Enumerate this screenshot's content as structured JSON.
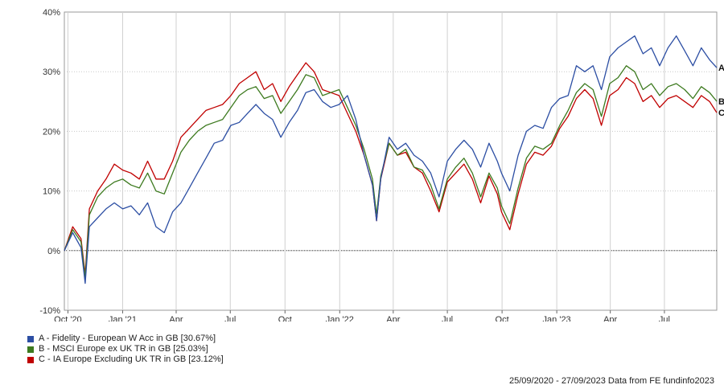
{
  "chart_data": {
    "type": "line",
    "ylim": [
      -10,
      40
    ],
    "yticks": [
      -10,
      0,
      10,
      20,
      30,
      40
    ],
    "ytick_labels": [
      "-10%",
      "0%",
      "10%",
      "20%",
      "30%",
      "40%"
    ],
    "xlim": [
      "2020-09-25",
      "2023-09-27"
    ],
    "xticks": [
      {
        "date": "2020-10-01",
        "label": "Oct '20"
      },
      {
        "date": "2021-01-01",
        "label": "Jan '21"
      },
      {
        "date": "2021-04-01",
        "label": "Apr"
      },
      {
        "date": "2021-07-01",
        "label": "Jul"
      },
      {
        "date": "2021-10-01",
        "label": "Oct"
      },
      {
        "date": "2022-01-01",
        "label": "Jan '22"
      },
      {
        "date": "2022-04-01",
        "label": "Apr"
      },
      {
        "date": "2022-07-01",
        "label": "Jul"
      },
      {
        "date": "2022-10-01",
        "label": "Oct"
      },
      {
        "date": "2023-01-01",
        "label": "Jan '23"
      },
      {
        "date": "2023-04-01",
        "label": "Apr"
      },
      {
        "date": "2023-07-01",
        "label": "Jul"
      }
    ],
    "grid": true,
    "legend_position": "bottom-left",
    "x": [
      "2020-09-25",
      "2020-10-09",
      "2020-10-23",
      "2020-10-30",
      "2020-11-06",
      "2020-11-20",
      "2020-12-04",
      "2020-12-18",
      "2021-01-01",
      "2021-01-15",
      "2021-01-29",
      "2021-02-12",
      "2021-02-26",
      "2021-03-12",
      "2021-03-26",
      "2021-04-09",
      "2021-04-23",
      "2021-05-07",
      "2021-05-21",
      "2021-06-04",
      "2021-06-18",
      "2021-07-02",
      "2021-07-16",
      "2021-07-30",
      "2021-08-13",
      "2021-08-27",
      "2021-09-10",
      "2021-09-24",
      "2021-10-08",
      "2021-10-22",
      "2021-11-05",
      "2021-11-19",
      "2021-12-03",
      "2021-12-17",
      "2021-12-31",
      "2022-01-14",
      "2022-01-28",
      "2022-02-11",
      "2022-02-25",
      "2022-03-04",
      "2022-03-11",
      "2022-03-25",
      "2022-04-08",
      "2022-04-22",
      "2022-05-06",
      "2022-05-20",
      "2022-06-03",
      "2022-06-17",
      "2022-07-01",
      "2022-07-15",
      "2022-07-29",
      "2022-08-12",
      "2022-08-26",
      "2022-09-09",
      "2022-09-23",
      "2022-09-30",
      "2022-10-14",
      "2022-10-28",
      "2022-11-11",
      "2022-11-25",
      "2022-12-09",
      "2022-12-23",
      "2023-01-06",
      "2023-01-20",
      "2023-02-03",
      "2023-02-17",
      "2023-03-03",
      "2023-03-17",
      "2023-03-31",
      "2023-04-14",
      "2023-04-28",
      "2023-05-12",
      "2023-05-26",
      "2023-06-09",
      "2023-06-23",
      "2023-07-07",
      "2023-07-21",
      "2023-08-04",
      "2023-08-18",
      "2023-09-01",
      "2023-09-15",
      "2023-09-27"
    ],
    "series": [
      {
        "name": "A - Fidelity - European W Acc in GB [30.67%]",
        "end_label": "A",
        "color": "#2c4ea3",
        "values": [
          0.0,
          3.0,
          0.5,
          -5.5,
          4.0,
          5.5,
          7.0,
          8.0,
          7.0,
          7.5,
          6.0,
          8.0,
          4.0,
          3.0,
          6.5,
          8.0,
          10.5,
          13.0,
          15.5,
          18.0,
          18.5,
          21.0,
          21.5,
          23.0,
          24.5,
          23.0,
          22.0,
          19.0,
          21.5,
          23.5,
          26.5,
          27.0,
          25.0,
          24.0,
          24.5,
          26.0,
          22.0,
          16.0,
          11.0,
          5.0,
          12.0,
          19.0,
          17.0,
          18.0,
          16.0,
          15.0,
          13.0,
          9.0,
          15.0,
          17.0,
          18.5,
          17.0,
          14.0,
          18.0,
          15.0,
          13.0,
          10.0,
          16.0,
          20.0,
          21.0,
          20.5,
          24.0,
          25.5,
          26.0,
          31.0,
          30.0,
          31.0,
          27.0,
          32.5,
          34.0,
          35.0,
          36.0,
          33.0,
          34.0,
          31.0,
          34.0,
          36.0,
          33.5,
          31.0,
          34.0,
          32.0,
          30.67
        ]
      },
      {
        "name": "B - MSCI Europe ex UK TR in GB [25.03%]",
        "end_label": "B",
        "color": "#3d7a1f",
        "values": [
          0.0,
          3.5,
          1.5,
          -4.5,
          6.0,
          9.0,
          10.5,
          11.5,
          12.0,
          11.0,
          10.5,
          13.0,
          10.0,
          9.5,
          13.0,
          16.5,
          18.5,
          20.0,
          21.0,
          21.5,
          22.0,
          24.0,
          26.0,
          27.0,
          27.5,
          25.5,
          26.0,
          23.0,
          25.0,
          27.0,
          29.5,
          29.0,
          26.0,
          26.5,
          27.0,
          24.0,
          21.0,
          17.0,
          12.0,
          6.0,
          12.5,
          18.0,
          16.0,
          17.0,
          14.0,
          13.5,
          11.0,
          7.0,
          12.0,
          14.0,
          15.5,
          13.0,
          9.0,
          13.0,
          10.5,
          7.5,
          4.5,
          10.5,
          15.5,
          17.5,
          17.0,
          18.0,
          21.0,
          23.5,
          26.5,
          28.0,
          27.0,
          22.5,
          28.0,
          29.0,
          31.0,
          30.0,
          27.0,
          28.0,
          26.0,
          27.5,
          28.0,
          27.0,
          25.5,
          27.5,
          26.5,
          25.03
        ]
      },
      {
        "name": "C - IA Europe Excluding UK TR in GB [23.12%]",
        "end_label": "C",
        "color": "#c00000",
        "values": [
          0.0,
          4.0,
          2.0,
          -4.0,
          7.0,
          10.0,
          12.0,
          14.5,
          13.5,
          13.0,
          12.0,
          15.0,
          12.0,
          12.0,
          15.0,
          19.0,
          20.5,
          22.0,
          23.5,
          24.0,
          24.5,
          26.0,
          28.0,
          29.0,
          30.0,
          27.0,
          28.0,
          25.0,
          27.5,
          29.5,
          31.5,
          30.0,
          27.0,
          26.5,
          26.0,
          23.0,
          20.0,
          16.0,
          11.0,
          5.0,
          12.0,
          18.0,
          16.0,
          16.5,
          14.0,
          13.0,
          10.0,
          6.5,
          11.5,
          13.0,
          14.5,
          12.0,
          8.0,
          12.5,
          9.5,
          6.5,
          3.5,
          9.5,
          14.5,
          16.5,
          16.0,
          17.5,
          20.5,
          22.5,
          25.5,
          27.0,
          25.5,
          21.0,
          26.0,
          27.0,
          29.0,
          28.0,
          25.0,
          26.0,
          24.0,
          25.5,
          26.0,
          25.0,
          24.0,
          26.0,
          25.0,
          23.12
        ]
      }
    ]
  },
  "footer": "25/09/2020 - 27/09/2023 Data from FE fundinfo2023"
}
